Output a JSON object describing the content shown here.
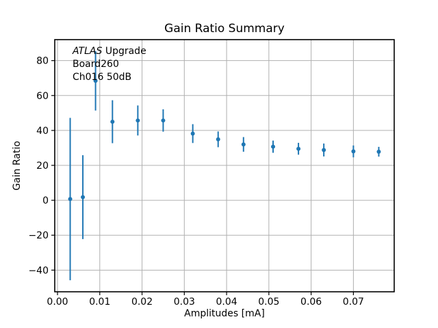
{
  "chart_data": {
    "type": "scatter",
    "subtype": "errorbar",
    "title": "Gain Ratio Summary",
    "xlabel": "Amplitudes [mA]",
    "ylabel": "Gain Ratio",
    "annotation": {
      "line1_italic": "ATLAS",
      "line1_rest": " Upgrade",
      "line2": "Board260",
      "line3": "Ch016 50dB"
    },
    "x": [
      0.003,
      0.006,
      0.009,
      0.013,
      0.019,
      0.025,
      0.032,
      0.038,
      0.044,
      0.051,
      0.057,
      0.063,
      0.07,
      0.076
    ],
    "y": [
      0.7,
      1.8,
      68.4,
      45.0,
      45.7,
      45.7,
      38.2,
      34.9,
      32.0,
      30.7,
      29.5,
      28.8,
      28.0,
      27.8
    ],
    "yerr": [
      46.5,
      24.0,
      17.0,
      12.3,
      8.6,
      6.4,
      5.4,
      4.5,
      4.2,
      3.5,
      3.4,
      3.7,
      3.4,
      2.8
    ],
    "xlim": [
      -0.00065,
      0.07965
    ],
    "ylim": [
      -52.4,
      92.0
    ],
    "x_ticks": {
      "values": [
        0.0,
        0.01,
        0.02,
        0.03,
        0.04,
        0.05,
        0.06,
        0.07
      ],
      "labels": [
        "0.00",
        "0.01",
        "0.02",
        "0.03",
        "0.04",
        "0.05",
        "0.06",
        "0.07"
      ]
    },
    "y_ticks": {
      "values": [
        80,
        60,
        40,
        20,
        0,
        -20,
        -40
      ],
      "labels": [
        "80",
        "60",
        "40",
        "20",
        "0",
        "−20",
        "−40"
      ]
    },
    "grid": true,
    "legend": null,
    "colors": {
      "series": "#1f77b4",
      "grid": "#b0b0b0",
      "spine": "#000000",
      "background": "#ffffff"
    }
  }
}
